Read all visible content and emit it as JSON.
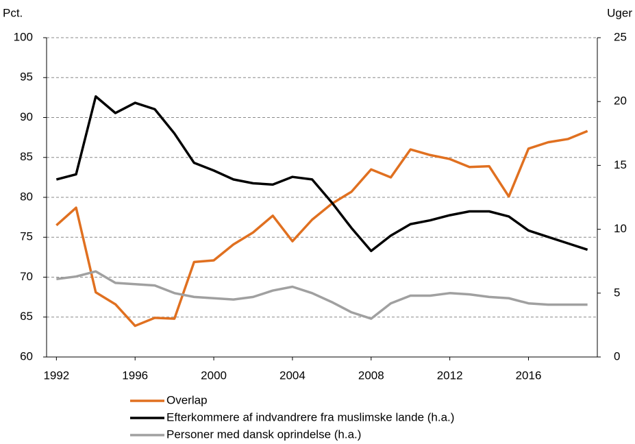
{
  "chart_data": {
    "type": "line",
    "ylabel": "Pct.",
    "y2label": "Uger",
    "x": [
      1992,
      1993,
      1994,
      1995,
      1996,
      1997,
      1998,
      1999,
      2000,
      2001,
      2002,
      2003,
      2004,
      2005,
      2006,
      2007,
      2008,
      2009,
      2010,
      2011,
      2012,
      2013,
      2014,
      2015,
      2016,
      2017,
      2018,
      2019
    ],
    "xlim": [
      1991.5,
      2019.5
    ],
    "xticks": [
      1992,
      1996,
      2000,
      2004,
      2008,
      2012,
      2016
    ],
    "ylim": [
      60,
      100
    ],
    "yticks": [
      60,
      65,
      70,
      75,
      80,
      85,
      90,
      95,
      100
    ],
    "y2lim": [
      0,
      25
    ],
    "y2ticks": [
      0,
      5,
      10,
      15,
      20,
      25
    ],
    "grid": true,
    "legend": "bottom",
    "series": [
      {
        "name": "Overlap",
        "color": "#e07020",
        "values": [
          76.5,
          78.7,
          68.1,
          66.6,
          63.9,
          64.9,
          64.8,
          71.9,
          72.1,
          74.1,
          75.6,
          77.7,
          74.5,
          77.2,
          79.2,
          80.7,
          83.5,
          82.5,
          86.0,
          85.3,
          84.8,
          83.8,
          83.9,
          80.1,
          86.1,
          86.9,
          87.3,
          88.3
        ]
      },
      {
        "name": "Efterkommere af indvandrere fra muslimske lande (h.a.)",
        "color": "#000000",
        "axis": "y2",
        "values": [
          13.9,
          14.3,
          20.4,
          19.1,
          19.9,
          19.4,
          17.5,
          15.2,
          14.6,
          13.9,
          13.6,
          13.5,
          14.1,
          13.9,
          12.1,
          10.1,
          8.3,
          9.5,
          10.4,
          10.7,
          11.1,
          11.4,
          11.4,
          11.0,
          9.9,
          9.4,
          8.9,
          8.4
        ]
      },
      {
        "name": "Personer med dansk oprindelse (h.a.)",
        "color": "#a0a0a0",
        "axis": "y2",
        "values": [
          6.1,
          6.3,
          6.7,
          5.8,
          5.7,
          5.6,
          5.0,
          4.7,
          4.6,
          4.5,
          4.7,
          5.2,
          5.5,
          5.0,
          4.3,
          3.5,
          3.0,
          4.2,
          4.8,
          4.8,
          5.0,
          4.9,
          4.7,
          4.6,
          4.2,
          4.1,
          4.1,
          4.1
        ]
      }
    ]
  }
}
